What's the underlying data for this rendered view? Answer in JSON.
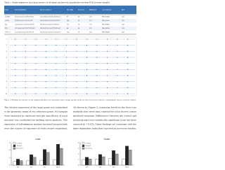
{
  "table": {
    "caption": "Table 1. Primer sequences and characteristics of the genes analysed by quantitative real-time PCR in tissue samples",
    "header": [
      "Gene",
      "Forward primer",
      "Reverse primer",
      "Size (bp)",
      "Tm (°C)",
      "Efficiency",
      "Accession no.",
      "Ref."
    ],
    "rows": [
      [
        "GAPDH",
        "TGCACCACCAACTGCTTAGC",
        "GGCATGGACTGTGGTCATGAG",
        "87",
        "60",
        "1.98",
        "NM_002046",
        "[12]"
      ],
      [
        "ACTB",
        "CCTGGCACCCAGCACAAT",
        "GCCGATCCACACGGAGTACT",
        "144",
        "60",
        "2.01",
        "NM_001101",
        "[12]"
      ],
      [
        "IL6",
        "AGACAGCCACTCACCTCTTC",
        "TTCTGCCAGTGCCTCTTTGC",
        "132",
        "58",
        "1.95",
        "NM_000600",
        "[14]"
      ],
      [
        "TNF",
        "CCCAGGGACCTCTCTCTAATC",
        "ATGGGCTACAGGCTTGTCACT",
        "84",
        "60",
        "1.97",
        "NM_000594",
        "[15]"
      ],
      [
        "CYP1A1",
        "CAGATCCCAGCCCTCATCTT",
        "GCCCAGGAAGAGAAAGACCT",
        "118",
        "59",
        "1.93",
        "NM_000499",
        "[16]"
      ]
    ]
  },
  "figure1": {
    "labels": [
      "1",
      "2",
      "3",
      "4",
      "5",
      "6",
      "7",
      "8",
      "9",
      "10"
    ],
    "caption": "Figure 1. Melting curve profiles of the amplified products for each primer pair; a single specific peak was observed for all reactions, confirming the absence of primer dimers."
  },
  "text": {
    "left": [
      "The relative expression of the target genes was normalised",
      "to the geometric mean of two reference genes. All samples",
      "were analysed in triplicate and the specificity of each",
      "reaction was confirmed by melting curve analysis. The",
      "expression of inflammatory markers increased progressively",
      "over the course of exposure in both tissues examined."
    ],
    "right": [
      "As shown in Figure 2, transcript levels in the liver rose",
      "markedly after seven days, whereas the colon showed a more",
      "moderate response. Differences between the control and",
      "treated groups were statistically significant from day three",
      "onwards (p < 0.05). These findings are consistent with the",
      "time-dependent induction reported in previous studies."
    ]
  },
  "charts": [
    {
      "type": "bar",
      "title": "Liver",
      "categories": [
        "D1",
        "D3",
        "D7",
        "D14"
      ],
      "series": [
        {
          "name": "Control",
          "color": "#ffffff",
          "values": [
            1.0,
            1.2,
            1.3,
            1.4
          ]
        },
        {
          "name": "Treated",
          "color": "#222222",
          "values": [
            1.6,
            2.8,
            4.2,
            5.6
          ]
        },
        {
          "name": "Recovery",
          "color": "#9a9a9a",
          "values": [
            1.2,
            2.1,
            3.4,
            4.5
          ]
        }
      ],
      "ylim": [
        0,
        6
      ],
      "yticks": [
        0,
        2,
        4,
        6
      ]
    },
    {
      "type": "bar",
      "title": "Colon",
      "categories": [
        "D1",
        "D3",
        "D7",
        "D14"
      ],
      "series": [
        {
          "name": "Control",
          "color": "#ffffff",
          "values": [
            1.0,
            1.1,
            1.2,
            1.1
          ]
        },
        {
          "name": "Treated",
          "color": "#222222",
          "values": [
            1.4,
            1.9,
            2.6,
            3.4
          ]
        },
        {
          "name": "Recovery",
          "color": "#9a9a9a",
          "values": [
            1.1,
            1.5,
            2.0,
            2.7
          ]
        }
      ],
      "ylim": [
        0,
        4
      ],
      "yticks": [
        0,
        1,
        2,
        3,
        4
      ]
    }
  ]
}
